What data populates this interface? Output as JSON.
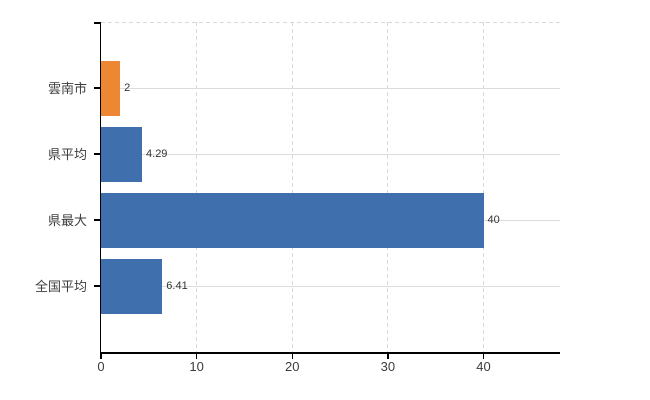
{
  "chart_data": {
    "type": "bar",
    "orientation": "horizontal",
    "title": "",
    "xlabel": "",
    "ylabel": "",
    "categories": [
      "雲南市",
      "県平均",
      "県最大",
      "全国平均"
    ],
    "values": [
      2,
      4.29,
      40,
      6.41
    ],
    "value_labels": [
      "2",
      "4.29",
      "40",
      "6.41"
    ],
    "bar_colors": [
      "#ED8733",
      "#3F70AD",
      "#3F70AD",
      "#3F70AD"
    ],
    "xlim": [
      0,
      48
    ],
    "x_ticks": [
      0,
      10,
      20,
      30,
      40
    ],
    "grid": true,
    "legend": "none",
    "background": "#FFFFFF"
  },
  "colors": {
    "accent_orange": "#ED8733",
    "accent_blue": "#3F70AD",
    "grid_line": "#D9D9D9",
    "axis_line": "#000000",
    "text": "#3C3C3C"
  }
}
